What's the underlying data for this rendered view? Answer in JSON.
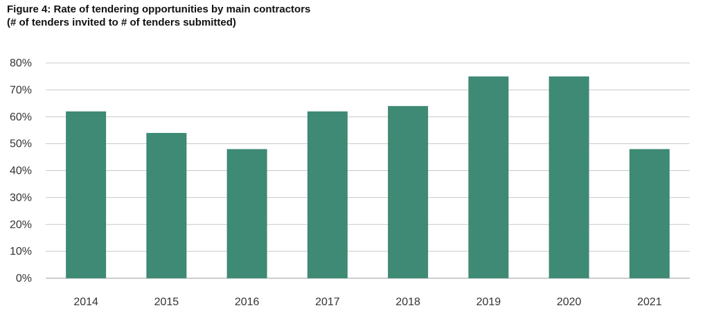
{
  "title_line1": "Figure 4: Rate of tendering opportunities by main contractors",
  "title_line2": "(# of tenders invited to # of tenders submitted)",
  "chart_data": {
    "type": "bar",
    "title": "Figure 4: Rate of tendering opportunities by main contractors",
    "subtitle": "(# of tenders invited to # of tenders submitted)",
    "categories": [
      "2014",
      "2015",
      "2016",
      "2017",
      "2018",
      "2019",
      "2020",
      "2021"
    ],
    "values": [
      62,
      54,
      48,
      62,
      64,
      75,
      75,
      48
    ],
    "ylim": [
      0,
      80
    ],
    "yticks": [
      0,
      10,
      20,
      30,
      40,
      50,
      60,
      70,
      80
    ],
    "ytick_labels": [
      "0%",
      "10%",
      "20%",
      "30%",
      "40%",
      "50%",
      "60%",
      "70%",
      "80%"
    ],
    "xlabel": "",
    "ylabel": "",
    "grid": true,
    "legend": "none",
    "bar_color": "#3e8a74",
    "grid_color": "#c8c8c8"
  }
}
